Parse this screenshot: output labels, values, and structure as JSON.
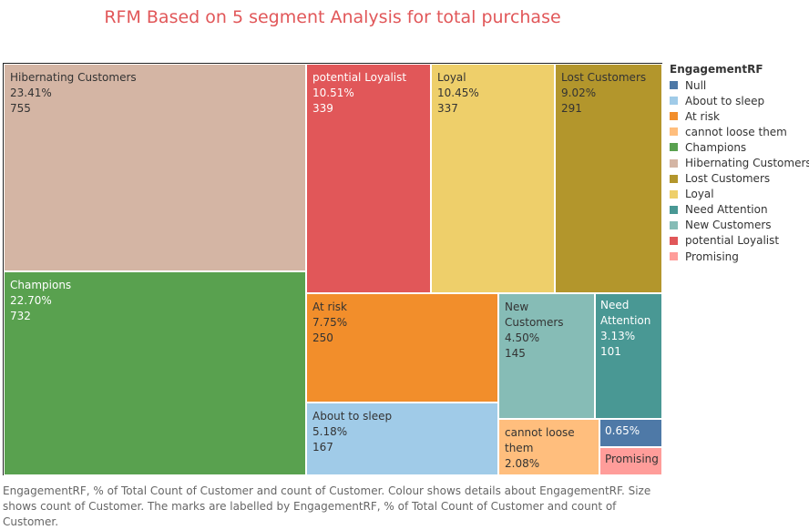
{
  "title": "RFM Based on 5 segment Analysis for total purchase",
  "chart_data": {
    "type": "treemap",
    "title": "RFM Based on 5 segment Analysis for total purchase",
    "legend_title": "EngagementRF",
    "segments": [
      {
        "name": "Hibernating Customers",
        "pct": "23.41%",
        "count": "755",
        "color": "#d4b5a4",
        "text": "#333333"
      },
      {
        "name": "Champions",
        "pct": "22.70%",
        "count": "732",
        "color": "#59a14f",
        "text": "#ffffff"
      },
      {
        "name": "potential Loyalist",
        "pct": "10.51%",
        "count": "339",
        "color": "#e15759",
        "text": "#ffffff"
      },
      {
        "name": "Loyal",
        "pct": "10.45%",
        "count": "337",
        "color": "#eecf6a",
        "text": "#333333"
      },
      {
        "name": "Lost Customers",
        "pct": "9.02%",
        "count": "291",
        "color": "#b3962c",
        "text": "#333333"
      },
      {
        "name": "At risk",
        "pct": "7.75%",
        "count": "250",
        "color": "#f28e2b",
        "text": "#333333"
      },
      {
        "name": "About to sleep",
        "pct": "5.18%",
        "count": "167",
        "color": "#a0cbe8",
        "text": "#333333"
      },
      {
        "name": "New Customers",
        "pct": "4.50%",
        "count": "145",
        "color": "#86bcb6",
        "text": "#333333"
      },
      {
        "name": "Need Attention",
        "pct": "3.13%",
        "count": "101",
        "color": "#499894",
        "text": "#ffffff"
      },
      {
        "name": "cannot loose them",
        "pct": "2.08%",
        "count": "",
        "color": "#ffbe7d",
        "text": "#333333"
      },
      {
        "name": "",
        "pct": "0.65%",
        "count": "",
        "color": "#4e79a7",
        "text": "#ffffff"
      },
      {
        "name": "Promising",
        "pct": "",
        "count": "",
        "color": "#ff9d9a",
        "text": "#333333"
      }
    ],
    "legend": [
      {
        "label": "Null",
        "color": "#4e79a7"
      },
      {
        "label": "About to sleep",
        "color": "#a0cbe8"
      },
      {
        "label": "At risk",
        "color": "#f28e2b"
      },
      {
        "label": "cannot loose them",
        "color": "#ffbe7d"
      },
      {
        "label": "Champions",
        "color": "#59a14f"
      },
      {
        "label": "Hibernating Customers",
        "color": "#d4b5a4"
      },
      {
        "label": "Lost Customers",
        "color": "#b3962c"
      },
      {
        "label": "Loyal",
        "color": "#eecf6a"
      },
      {
        "label": "Need Attention",
        "color": "#499894"
      },
      {
        "label": "New Customers",
        "color": "#86bcb6"
      },
      {
        "label": "potential Loyalist",
        "color": "#e15759"
      },
      {
        "label": "Promising",
        "color": "#ff9d9a"
      }
    ]
  },
  "caption": "EngagementRF, % of Total Count of Customer and count of Customer.  Colour shows details about EngagementRF.  Size shows count of Customer.  The marks are labelled by EngagementRF, % of Total Count of Customer and count of Customer."
}
